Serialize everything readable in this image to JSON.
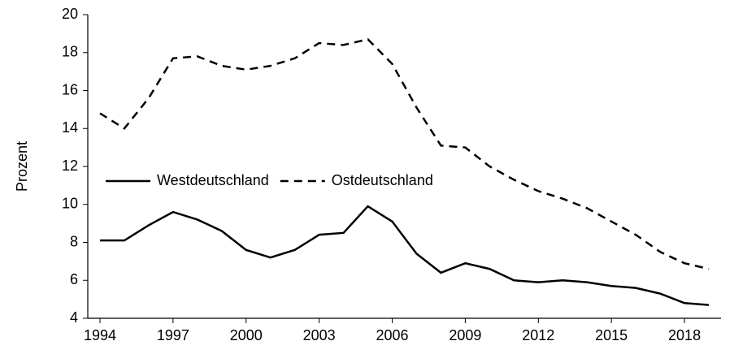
{
  "chart_data": {
    "type": "line",
    "y_label": "Prozent",
    "x": [
      1994,
      1995,
      1996,
      1997,
      1998,
      1999,
      2000,
      2001,
      2002,
      2003,
      2004,
      2005,
      2006,
      2007,
      2008,
      2009,
      2010,
      2011,
      2012,
      2013,
      2014,
      2015,
      2016,
      2017,
      2018,
      2019
    ],
    "series": [
      {
        "name": "Westdeutschland",
        "color": "#000000",
        "dash": "solid",
        "values": [
          8.1,
          8.1,
          8.9,
          9.6,
          9.2,
          8.6,
          7.6,
          7.2,
          7.6,
          8.4,
          8.5,
          9.9,
          9.1,
          7.4,
          6.4,
          6.9,
          6.6,
          6.0,
          5.9,
          6.0,
          5.9,
          5.7,
          5.6,
          5.3,
          4.8,
          4.7
        ]
      },
      {
        "name": "Ostdeutschland",
        "color": "#000000",
        "dash": "dashed",
        "values": [
          14.8,
          14.0,
          15.6,
          17.7,
          17.8,
          17.3,
          17.1,
          17.3,
          17.7,
          18.5,
          18.4,
          18.7,
          17.4,
          15.1,
          13.1,
          13.0,
          12.0,
          11.3,
          10.7,
          10.3,
          9.8,
          9.1,
          8.4,
          7.5,
          6.9,
          6.6
        ]
      }
    ],
    "xlim": [
      1993.5,
      2019.5
    ],
    "xticks": [
      1994,
      1997,
      2000,
      2003,
      2006,
      2009,
      2012,
      2015,
      2018
    ],
    "ylim": [
      4,
      20
    ],
    "yticks": [
      4,
      6,
      8,
      10,
      12,
      14,
      16,
      18,
      20
    ],
    "grid": false,
    "legend": "left"
  }
}
